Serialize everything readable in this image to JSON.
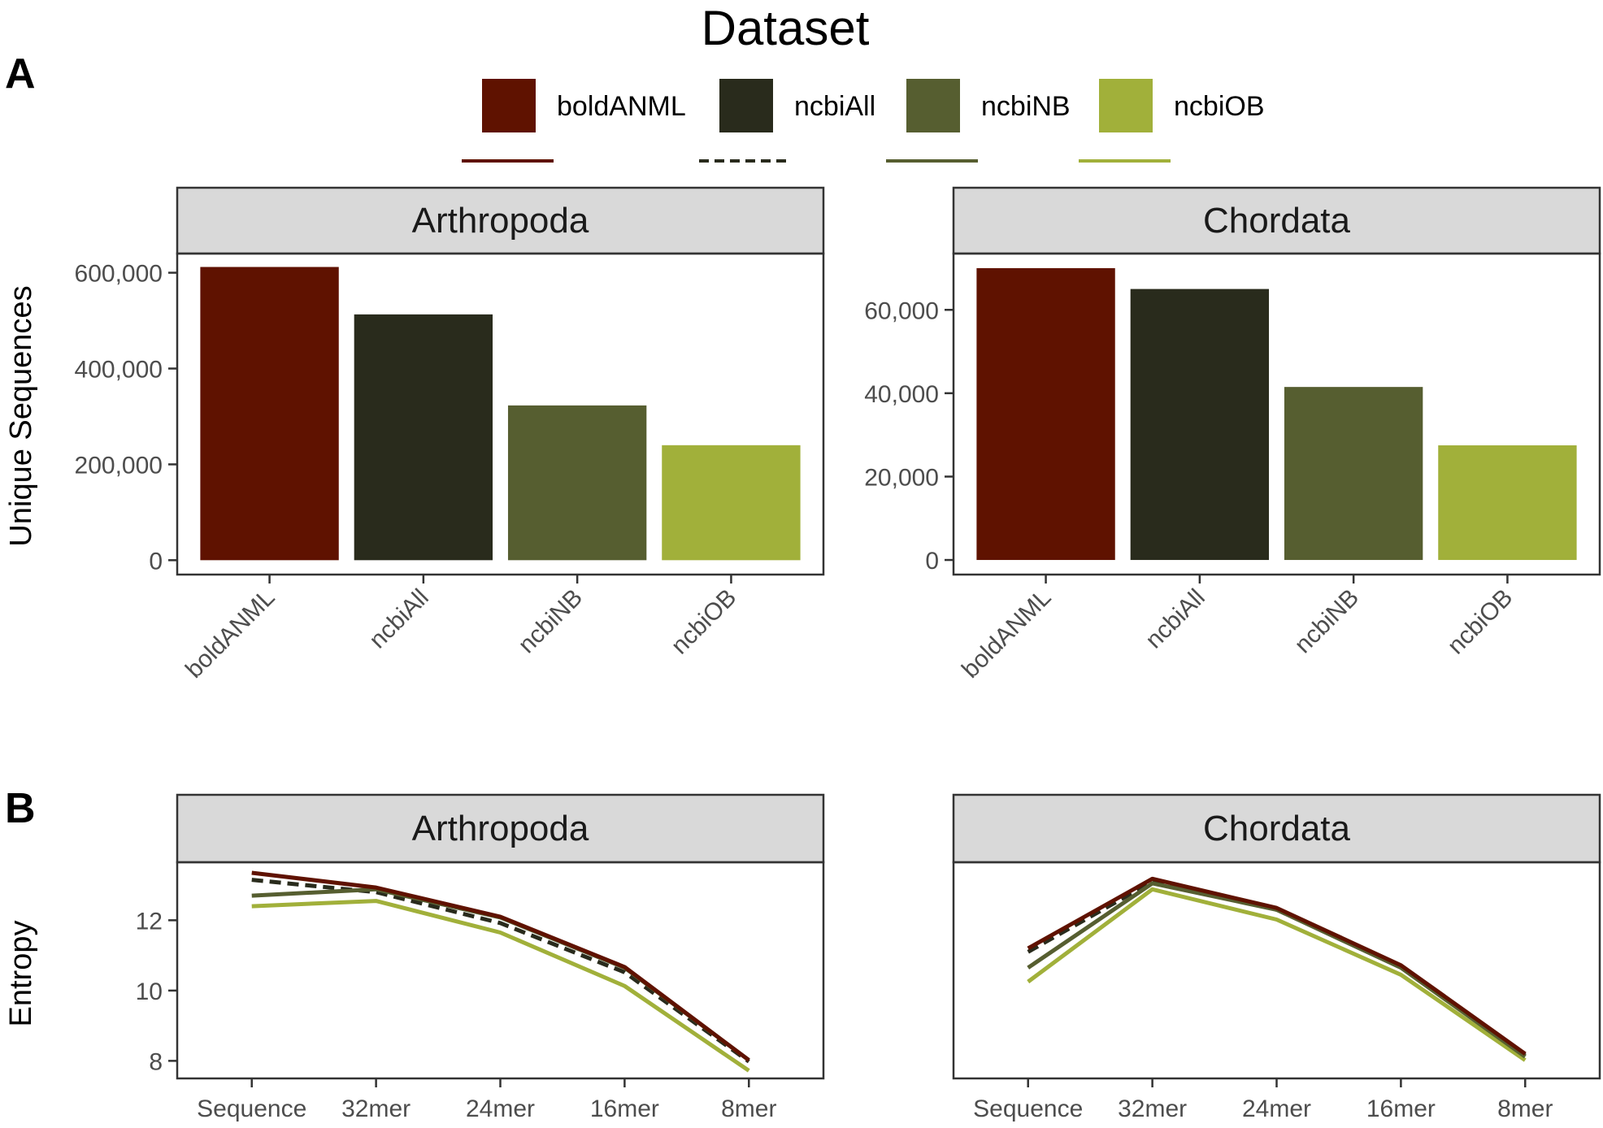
{
  "legend": {
    "title": "Dataset",
    "items": [
      {
        "label": "boldANML",
        "color": "#5f1200",
        "dash": "solid"
      },
      {
        "label": "ncbiAll",
        "color": "#292b1c",
        "dash": "dashed"
      },
      {
        "label": "ncbiNB",
        "color": "#565e30",
        "dash": "solid"
      },
      {
        "label": "ncbiOB",
        "color": "#a1b03a",
        "dash": "solid"
      }
    ]
  },
  "panel_tags": {
    "a": "A",
    "b": "B"
  },
  "chart_data": [
    {
      "type": "bar",
      "panel": "A",
      "ylabel": "Unique Sequences",
      "facets": [
        {
          "strip": "Arthropoda",
          "categories": [
            "boldANML",
            "ncbiAll",
            "ncbiNB",
            "ncbiOB"
          ],
          "values": [
            612000,
            513000,
            323000,
            240000
          ],
          "ylim": [
            -30000,
            640000
          ],
          "yticks": [
            0,
            200000,
            400000,
            600000
          ],
          "ytick_labels": [
            "0",
            "200,000",
            "400,000",
            "600,000"
          ]
        },
        {
          "strip": "Chordata",
          "categories": [
            "boldANML",
            "ncbiAll",
            "ncbiNB",
            "ncbiOB"
          ],
          "values": [
            70000,
            65000,
            41500,
            27500
          ],
          "ylim": [
            -3500,
            73500
          ],
          "yticks": [
            0,
            20000,
            40000,
            60000
          ],
          "ytick_labels": [
            "0",
            "20,000",
            "40,000",
            "60,000"
          ]
        }
      ],
      "grid": false
    },
    {
      "type": "line",
      "panel": "B",
      "ylabel": "Entropy",
      "x": [
        "Sequence",
        "32mer",
        "24mer",
        "16mer",
        "8mer"
      ],
      "ylim": [
        7.5,
        13.65
      ],
      "yticks": [
        8,
        10,
        12
      ],
      "ytick_labels": [
        "8",
        "10",
        "12"
      ],
      "facets": [
        {
          "strip": "Arthropoda",
          "show_yticks": true,
          "series": [
            {
              "name": "boldANML",
              "values": [
                13.35,
                12.93,
                12.1,
                10.67,
                8.02
              ]
            },
            {
              "name": "ncbiAll",
              "values": [
                13.15,
                12.8,
                11.92,
                10.52,
                7.98
              ]
            },
            {
              "name": "ncbiNB",
              "values": [
                12.7,
                12.88,
                12.08,
                10.65,
                8.02
              ]
            },
            {
              "name": "ncbiOB",
              "values": [
                12.4,
                12.55,
                11.65,
                10.13,
                7.72
              ]
            }
          ]
        },
        {
          "strip": "Chordata",
          "show_yticks": false,
          "series": [
            {
              "name": "boldANML",
              "values": [
                11.2,
                13.18,
                12.35,
                10.72,
                8.2
              ]
            },
            {
              "name": "ncbiAll",
              "values": [
                11.1,
                13.1,
                12.3,
                10.68,
                8.15
              ]
            },
            {
              "name": "ncbiNB",
              "values": [
                10.65,
                13.05,
                12.3,
                10.65,
                8.12
              ]
            },
            {
              "name": "ncbiOB",
              "values": [
                10.25,
                12.88,
                12.02,
                10.45,
                8.02
              ]
            }
          ]
        }
      ],
      "grid": false
    }
  ]
}
